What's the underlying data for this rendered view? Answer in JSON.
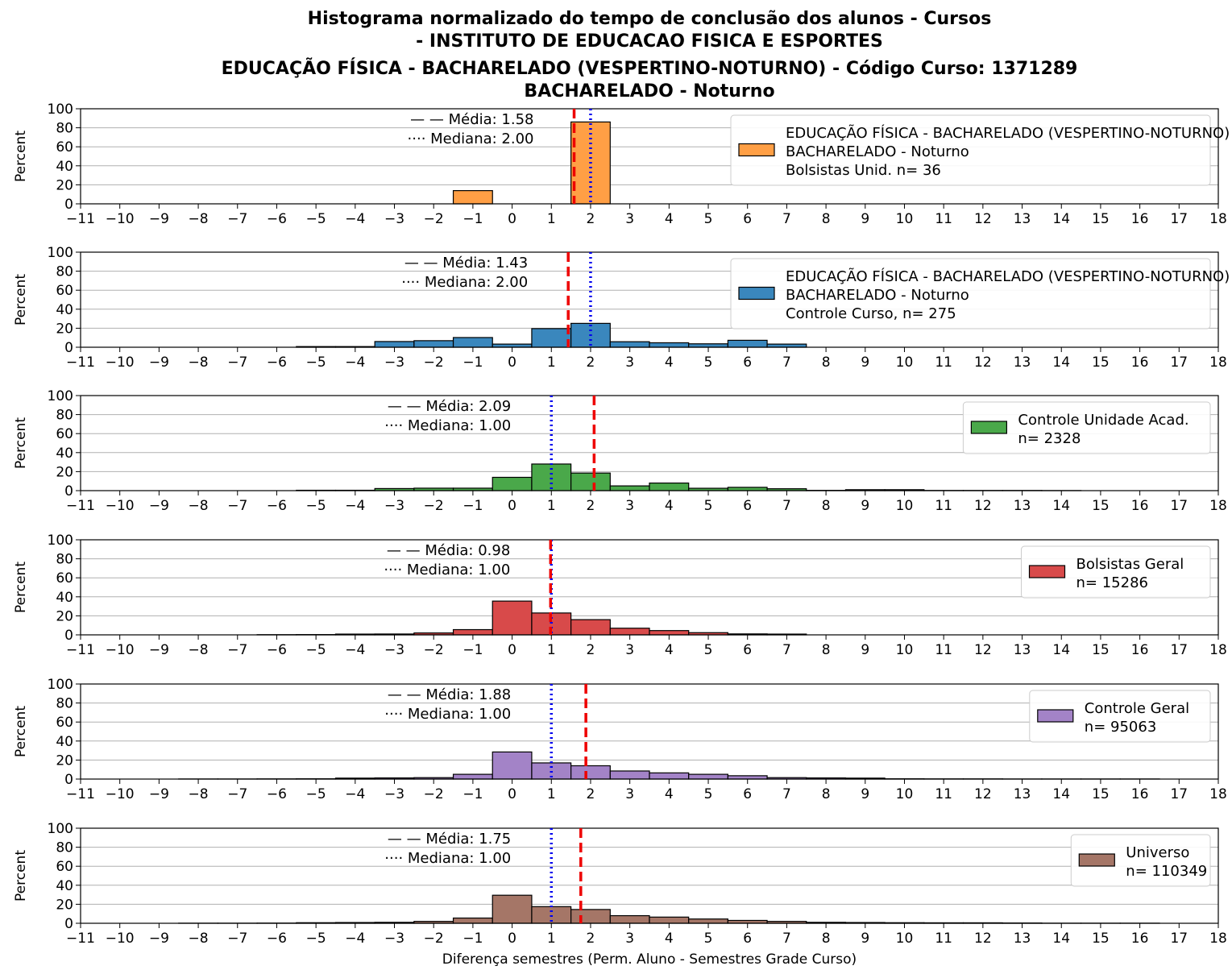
{
  "title_lines": [
    "Histograma normalizado do tempo de conclusão dos alunos - Cursos",
    "- INSTITUTO DE EDUCACAO FISICA E ESPORTES",
    "EDUCAÇÃO FÍSICA - BACHARELADO (VESPERTINO-NOTURNO) - Código Curso: 1371289",
    "BACHARELADO - Noturno"
  ],
  "chart_data": {
    "type": "bar",
    "xlabel": "Diferença semestres (Perm. Aluno - Semestres Grade Curso)",
    "ylabel": "Percent",
    "xlim": [
      -11,
      18
    ],
    "ylim": [
      0,
      100
    ],
    "xticks": [
      -11,
      -10,
      -9,
      -8,
      -7,
      -6,
      -5,
      -4,
      -3,
      -2,
      -1,
      0,
      1,
      2,
      3,
      4,
      5,
      6,
      7,
      8,
      9,
      10,
      11,
      12,
      13,
      14,
      15,
      16,
      17,
      18
    ],
    "yticks": [
      0,
      20,
      40,
      60,
      80,
      100
    ],
    "grid": "horizontal",
    "stat_labels": {
      "mean": "— — Média: ",
      "median": "···· Mediana: "
    },
    "panels": [
      {
        "name": "bolsistas-unid",
        "color": "#ff9f45",
        "legend": [
          "EDUCAÇÃO FÍSICA - BACHARELADO (VESPERTINO-NOTURNO)",
          "BACHARELADO - Noturno",
          "Bolsistas Unid. n= 36"
        ],
        "legend_position": "right",
        "mean": 1.58,
        "median": 2.0,
        "mean_text": "1.58",
        "median_text": "2.00",
        "bins": [
          {
            "x": -1,
            "value": 13.9
          },
          {
            "x": 2,
            "value": 86.1
          }
        ]
      },
      {
        "name": "controle-curso",
        "color": "#3a87bd",
        "legend": [
          "EDUCAÇÃO FÍSICA - BACHARELADO (VESPERTINO-NOTURNO)",
          "BACHARELADO - Noturno",
          "Controle Curso, n= 275"
        ],
        "legend_position": "right",
        "mean": 1.43,
        "median": 2.0,
        "mean_text": "1.43",
        "median_text": "2.00",
        "bins": [
          {
            "x": -5,
            "value": 0.7
          },
          {
            "x": -4,
            "value": 0.7
          },
          {
            "x": -3,
            "value": 6.0
          },
          {
            "x": -2,
            "value": 6.9
          },
          {
            "x": -1,
            "value": 10.2
          },
          {
            "x": 0,
            "value": 3.3
          },
          {
            "x": 1,
            "value": 19.6
          },
          {
            "x": 2,
            "value": 25.1
          },
          {
            "x": 3,
            "value": 5.8
          },
          {
            "x": 4,
            "value": 4.7
          },
          {
            "x": 5,
            "value": 3.6
          },
          {
            "x": 6,
            "value": 7.3
          },
          {
            "x": 7,
            "value": 3.3
          }
        ]
      },
      {
        "name": "controle-unidade",
        "color": "#4aa84a",
        "legend": [
          "Controle Unidade Acad.",
          "n= 2328"
        ],
        "legend_position": "right",
        "mean": 2.09,
        "median": 1.0,
        "mean_text": "2.09",
        "median_text": "1.00",
        "bins": [
          {
            "x": -5,
            "value": 0.4
          },
          {
            "x": -4,
            "value": 0.4
          },
          {
            "x": -3,
            "value": 2.2
          },
          {
            "x": -2,
            "value": 2.6
          },
          {
            "x": -1,
            "value": 2.6
          },
          {
            "x": 0,
            "value": 14.0
          },
          {
            "x": 1,
            "value": 28.0
          },
          {
            "x": 2,
            "value": 18.5
          },
          {
            "x": 3,
            "value": 5.0
          },
          {
            "x": 4,
            "value": 8.0
          },
          {
            "x": 5,
            "value": 2.5
          },
          {
            "x": 6,
            "value": 3.5
          },
          {
            "x": 7,
            "value": 2.0
          },
          {
            "x": 8,
            "value": 0.3
          },
          {
            "x": 9,
            "value": 1.0
          },
          {
            "x": 10,
            "value": 1.0
          },
          {
            "x": 11,
            "value": 0.2
          },
          {
            "x": 12,
            "value": 0.2
          },
          {
            "x": 13,
            "value": 0.2
          },
          {
            "x": 14,
            "value": 0.1
          }
        ]
      },
      {
        "name": "bolsistas-geral",
        "color": "#d84a4a",
        "legend": [
          "Bolsistas Geral",
          "n= 15286"
        ],
        "legend_position": "right",
        "mean": 0.98,
        "median": 1.0,
        "mean_text": "0.98",
        "median_text": "1.00",
        "bins": [
          {
            "x": -6,
            "value": 0.2
          },
          {
            "x": -5,
            "value": 0.3
          },
          {
            "x": -4,
            "value": 0.8
          },
          {
            "x": -3,
            "value": 0.9
          },
          {
            "x": -2,
            "value": 2.0
          },
          {
            "x": -1,
            "value": 5.5
          },
          {
            "x": 0,
            "value": 35.5
          },
          {
            "x": 1,
            "value": 23.0
          },
          {
            "x": 2,
            "value": 16.0
          },
          {
            "x": 3,
            "value": 7.0
          },
          {
            "x": 4,
            "value": 4.5
          },
          {
            "x": 5,
            "value": 2.3
          },
          {
            "x": 6,
            "value": 1.0
          },
          {
            "x": 7,
            "value": 0.8
          }
        ]
      },
      {
        "name": "controle-geral",
        "color": "#a383c7",
        "legend": [
          "Controle Geral",
          "n= 95063"
        ],
        "legend_position": "right",
        "mean": 1.88,
        "median": 1.0,
        "mean_text": "1.88",
        "median_text": "1.00",
        "bins": [
          {
            "x": -8,
            "value": 0.1
          },
          {
            "x": -7,
            "value": 0.1
          },
          {
            "x": -6,
            "value": 0.2
          },
          {
            "x": -5,
            "value": 0.3
          },
          {
            "x": -4,
            "value": 1.0
          },
          {
            "x": -3,
            "value": 1.2
          },
          {
            "x": -2,
            "value": 1.5
          },
          {
            "x": -1,
            "value": 5.0
          },
          {
            "x": 0,
            "value": 28.5
          },
          {
            "x": 1,
            "value": 17.0
          },
          {
            "x": 2,
            "value": 14.0
          },
          {
            "x": 3,
            "value": 8.5
          },
          {
            "x": 4,
            "value": 6.5
          },
          {
            "x": 5,
            "value": 5.0
          },
          {
            "x": 6,
            "value": 3.5
          },
          {
            "x": 7,
            "value": 1.5
          },
          {
            "x": 8,
            "value": 1.2
          },
          {
            "x": 9,
            "value": 1.0
          },
          {
            "x": 10,
            "value": 0.3
          },
          {
            "x": 11,
            "value": 0.2
          },
          {
            "x": 12,
            "value": 0.2
          },
          {
            "x": 13,
            "value": 0.1
          },
          {
            "x": 14,
            "value": 0.1
          },
          {
            "x": 15,
            "value": 0.1
          },
          {
            "x": 16,
            "value": 0.1
          }
        ]
      },
      {
        "name": "universo",
        "color": "#a57667",
        "legend": [
          "Universo",
          "n= 110349"
        ],
        "legend_position": "right",
        "mean": 1.75,
        "median": 1.0,
        "mean_text": "1.75",
        "median_text": "1.00",
        "bins": [
          {
            "x": -8,
            "value": 0.1
          },
          {
            "x": -7,
            "value": 0.1
          },
          {
            "x": -6,
            "value": 0.2
          },
          {
            "x": -5,
            "value": 0.6
          },
          {
            "x": -4,
            "value": 0.8
          },
          {
            "x": -3,
            "value": 1.0
          },
          {
            "x": -2,
            "value": 2.0
          },
          {
            "x": -1,
            "value": 5.5
          },
          {
            "x": 0,
            "value": 29.5
          },
          {
            "x": 1,
            "value": 17.5
          },
          {
            "x": 2,
            "value": 14.5
          },
          {
            "x": 3,
            "value": 8.0
          },
          {
            "x": 4,
            "value": 6.5
          },
          {
            "x": 5,
            "value": 4.5
          },
          {
            "x": 6,
            "value": 3.0
          },
          {
            "x": 7,
            "value": 2.0
          },
          {
            "x": 8,
            "value": 1.0
          },
          {
            "x": 9,
            "value": 0.8
          },
          {
            "x": 10,
            "value": 0.6
          },
          {
            "x": 11,
            "value": 0.5
          },
          {
            "x": 12,
            "value": 0.5
          },
          {
            "x": 13,
            "value": 0.3
          },
          {
            "x": 14,
            "value": 0.1
          },
          {
            "x": 15,
            "value": 0.1
          },
          {
            "x": 16,
            "value": 0.1
          }
        ]
      }
    ]
  }
}
